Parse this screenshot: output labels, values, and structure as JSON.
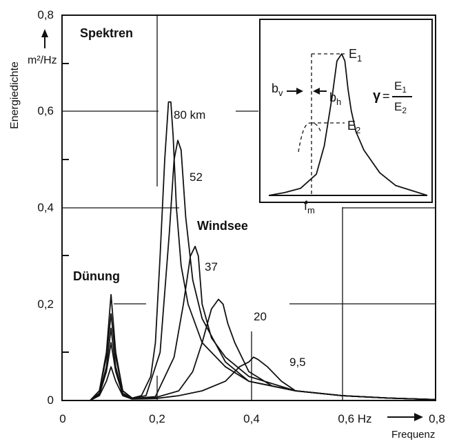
{
  "chart_data": {
    "type": "line",
    "title": "Spektren",
    "xlabel": "Frequenz",
    "x_unit": "Hz",
    "ylabel": "Energiedichte",
    "y_unit": "m²/Hz",
    "xlim": [
      0,
      0.8
    ],
    "ylim": [
      0,
      0.8
    ],
    "x_ticks": [
      "0",
      "0,2",
      "0,4",
      "0,6 Hz",
      "0,8"
    ],
    "y_ticks": [
      "0",
      "0,2",
      "0,4",
      "0,6",
      "0,8"
    ],
    "grid": true,
    "annotations": {
      "swell": "Dünung",
      "windsea": "Windsee"
    },
    "series": [
      {
        "name": "80 km",
        "x": [
          0.06,
          0.08,
          0.095,
          0.105,
          0.115,
          0.13,
          0.15,
          0.17,
          0.19,
          0.2,
          0.21,
          0.22,
          0.228,
          0.233,
          0.238,
          0.245,
          0.255,
          0.27,
          0.3,
          0.35,
          0.4,
          0.5,
          0.6,
          0.7,
          0.8
        ],
        "y": [
          0,
          0.02,
          0.1,
          0.22,
          0.1,
          0.02,
          0.005,
          0.01,
          0.05,
          0.12,
          0.3,
          0.5,
          0.62,
          0.62,
          0.55,
          0.4,
          0.28,
          0.2,
          0.12,
          0.07,
          0.04,
          0.02,
          0.01,
          0.005,
          0.002
        ]
      },
      {
        "name": "52",
        "x": [
          0.06,
          0.08,
          0.095,
          0.105,
          0.115,
          0.13,
          0.15,
          0.18,
          0.21,
          0.23,
          0.24,
          0.248,
          0.255,
          0.265,
          0.28,
          0.3,
          0.35,
          0.4,
          0.5,
          0.6,
          0.7,
          0.8
        ],
        "y": [
          0,
          0.02,
          0.09,
          0.18,
          0.09,
          0.02,
          0.005,
          0.01,
          0.1,
          0.35,
          0.5,
          0.54,
          0.52,
          0.38,
          0.25,
          0.17,
          0.08,
          0.04,
          0.02,
          0.01,
          0.005,
          0.002
        ]
      },
      {
        "name": "37",
        "x": [
          0.06,
          0.08,
          0.095,
          0.105,
          0.115,
          0.13,
          0.15,
          0.2,
          0.24,
          0.26,
          0.275,
          0.285,
          0.292,
          0.3,
          0.32,
          0.35,
          0.4,
          0.5,
          0.6,
          0.7,
          0.8
        ],
        "y": [
          0,
          0.015,
          0.07,
          0.15,
          0.07,
          0.015,
          0.004,
          0.008,
          0.09,
          0.2,
          0.3,
          0.32,
          0.3,
          0.2,
          0.13,
          0.09,
          0.05,
          0.02,
          0.01,
          0.005,
          0.002
        ]
      },
      {
        "name": "20",
        "x": [
          0.06,
          0.08,
          0.095,
          0.105,
          0.115,
          0.13,
          0.15,
          0.2,
          0.25,
          0.28,
          0.3,
          0.32,
          0.335,
          0.345,
          0.355,
          0.37,
          0.4,
          0.45,
          0.5,
          0.6,
          0.7,
          0.8
        ],
        "y": [
          0,
          0.012,
          0.06,
          0.12,
          0.06,
          0.012,
          0.004,
          0.006,
          0.02,
          0.06,
          0.12,
          0.19,
          0.21,
          0.2,
          0.16,
          0.12,
          0.06,
          0.03,
          0.02,
          0.01,
          0.005,
          0.002
        ]
      },
      {
        "name": "9,5",
        "x": [
          0.06,
          0.08,
          0.095,
          0.105,
          0.115,
          0.13,
          0.15,
          0.2,
          0.25,
          0.3,
          0.35,
          0.38,
          0.4,
          0.41,
          0.42,
          0.44,
          0.47,
          0.5,
          0.6,
          0.7,
          0.8
        ],
        "y": [
          0,
          0.01,
          0.04,
          0.07,
          0.04,
          0.01,
          0.003,
          0.004,
          0.01,
          0.02,
          0.04,
          0.07,
          0.08,
          0.09,
          0.085,
          0.07,
          0.04,
          0.02,
          0.01,
          0.005,
          0.002
        ]
      }
    ],
    "inset": {
      "type": "line",
      "labels": {
        "peak": "E",
        "peak_sub": "1",
        "mean": "E",
        "mean_sub": "2",
        "fm": "f",
        "fm_sub": "m",
        "bv": "b",
        "bv_sub": "v",
        "bh": "b",
        "bh_sub": "h"
      },
      "formula": {
        "gamma": "γ",
        "equals": "=",
        "numerator": "E",
        "numerator_sub": "1",
        "denominator": "E",
        "denominator_sub": "2"
      },
      "x": [
        0,
        0.1,
        0.2,
        0.3,
        0.35,
        0.4,
        0.43,
        0.46,
        0.48,
        0.5,
        0.52,
        0.55,
        0.6,
        0.7,
        0.8,
        1
      ],
      "y": [
        0,
        0.02,
        0.05,
        0.15,
        0.35,
        0.7,
        0.95,
        1.0,
        0.95,
        0.75,
        0.6,
        0.45,
        0.32,
        0.16,
        0.07,
        0
      ]
    }
  }
}
